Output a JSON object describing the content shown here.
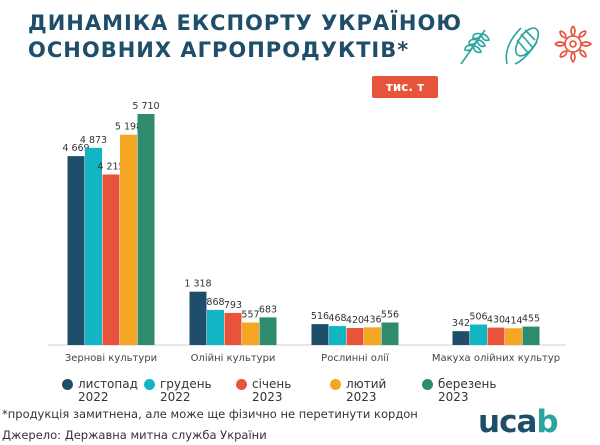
{
  "title_line1": "ДИНАМІКА ЕКСПОРТУ УКРАЇНОЮ",
  "title_line2": "ОСНОВНИХ АГРОПРОДУКТІВ*",
  "unit": "тис. т",
  "footnote": "*продукція замитнена, але може ще фізично не перетинути кордон",
  "source": "Джерело: Державна митна служба України",
  "logo": {
    "main": "uca",
    "accent": "b"
  },
  "icons": [
    "wheat-icon",
    "corn-icon",
    "sunflower-icon"
  ],
  "chart_data": {
    "type": "bar",
    "categories": [
      "Зернові культури",
      "Олійні культури",
      "Рослинні олії",
      "Макуха олійних культур"
    ],
    "series": [
      {
        "name": "листопад 2022",
        "color": "#1f4e6b",
        "values": [
          4669,
          1318,
          516,
          342
        ],
        "labels": [
          "4 669",
          "1 318",
          "516",
          "342"
        ]
      },
      {
        "name": "грудень 2022",
        "color": "#12b5c4",
        "values": [
          4873,
          868,
          468,
          506
        ],
        "labels": [
          "4 873",
          "868",
          "468",
          "506"
        ]
      },
      {
        "name": "січень 2023",
        "color": "#e8533b",
        "values": [
          4215,
          793,
          420,
          430
        ],
        "labels": [
          "4 215",
          "793",
          "420",
          "430"
        ]
      },
      {
        "name": "лютий 2023",
        "color": "#f5a623",
        "values": [
          5198,
          557,
          436,
          414
        ],
        "labels": [
          "5 198",
          "557",
          "436",
          "414"
        ]
      },
      {
        "name": "березень 2023",
        "color": "#2e8b6e",
        "values": [
          5710,
          683,
          556,
          455
        ],
        "labels": [
          "5 710",
          "683",
          "556",
          "455"
        ]
      }
    ],
    "ymax": 5710,
    "grid": false,
    "legend_position": "bottom"
  }
}
